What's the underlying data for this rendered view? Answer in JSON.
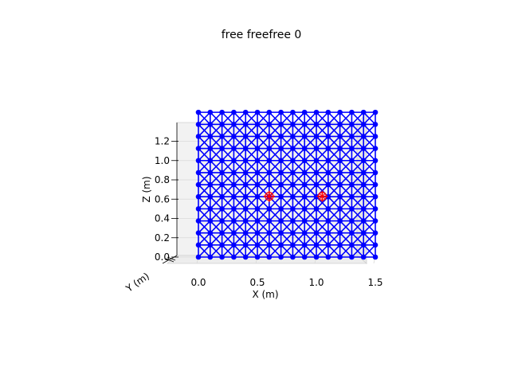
{
  "chart_data": {
    "type": "scatter",
    "projection": "3d",
    "title": "free freefree 0",
    "xlabel": "X (m)",
    "ylabel": "Y (m)",
    "zlabel": "Z (m)",
    "xlim": [
      -0.2,
      1.7
    ],
    "zlim": [
      0.0,
      1.3
    ],
    "x_ticks": [
      "0.0",
      "0.5",
      "1.0",
      "1.5"
    ],
    "x_tick_values": [
      0.0,
      0.5,
      1.0,
      1.5
    ],
    "z_ticks": [
      "0.0",
      "0.2",
      "0.4",
      "0.6",
      "0.8",
      "1.0",
      "1.2"
    ],
    "z_tick_values": [
      0.0,
      0.2,
      0.4,
      0.6,
      0.8,
      1.0,
      1.2
    ],
    "grid": true,
    "colors": {
      "nodes": "#0000ff",
      "members": "#0000ff",
      "markers": "#ff0000",
      "pane": "#f2f2f2",
      "gridline": "#d8d8d8"
    },
    "series": [
      {
        "marker": "o",
        "lattice": {
          "x_start": 0.0,
          "x_step": 0.1,
          "x_count": 16,
          "z_start": 0.0,
          "z_step": 0.125,
          "z_count": 13
        }
      },
      {
        "marker": "x",
        "points": [
          {
            "x": 0.6,
            "z": 0.63
          },
          {
            "x": 1.05,
            "z": 0.63
          }
        ]
      }
    ]
  }
}
